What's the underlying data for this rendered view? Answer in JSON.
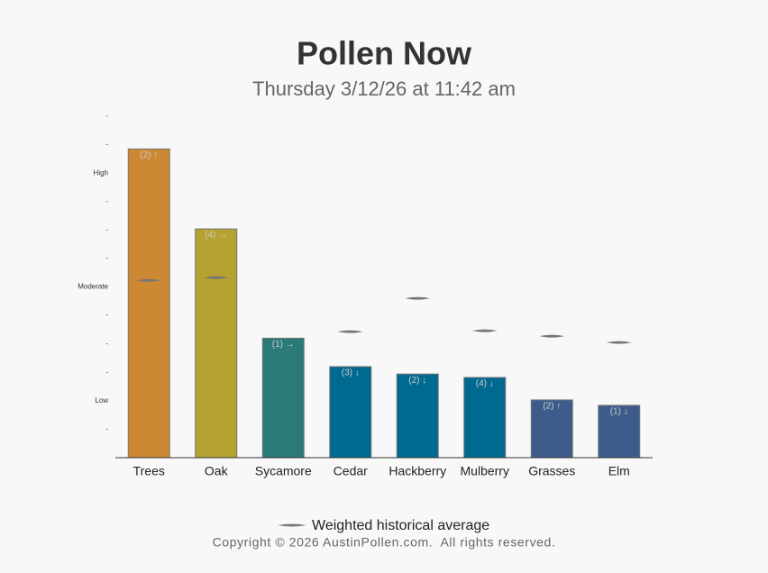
{
  "chart_data": {
    "type": "bar",
    "title": "Pollen Now",
    "subtitle": "Thursday 3/12/26 at 11:42 am",
    "categories": [
      "Trees",
      "Oak",
      "Sycamore",
      "Cedar",
      "Hackberry",
      "Mulberry",
      "Grasses",
      "Elm"
    ],
    "values": [
      10.85,
      8.04,
      4.2,
      3.2,
      2.94,
      2.82,
      2.03,
      1.84
    ],
    "annotations": [
      "(2) ↑",
      "(4) →",
      "(1) →",
      "(3) ↓",
      "(2) ↓",
      "(4) ↓",
      "(2) ↑",
      "(1) ↓"
    ],
    "colors": [
      "#cd8834",
      "#b5a230",
      "#2a7a78",
      "#006990",
      "#006990",
      "#006990",
      "#3d5c8c",
      "#3d5c8c"
    ],
    "historical": {
      "name": "Weighted historical average",
      "color": "#777777",
      "values": [
        6.23,
        6.33,
        null,
        4.43,
        5.6,
        4.46,
        4.27,
        4.05
      ]
    },
    "ylim": [
      0,
      12
    ],
    "yticks": [
      {
        "value": 1,
        "label": "-"
      },
      {
        "value": 2,
        "label": "Low"
      },
      {
        "value": 3,
        "label": "-"
      },
      {
        "value": 4,
        "label": "-"
      },
      {
        "value": 5,
        "label": "-"
      },
      {
        "value": 6,
        "label": "Moderate"
      },
      {
        "value": 7,
        "label": "-"
      },
      {
        "value": 8,
        "label": "-"
      },
      {
        "value": 9,
        "label": "-"
      },
      {
        "value": 10,
        "label": "High"
      },
      {
        "value": 11,
        "label": "-"
      },
      {
        "value": 12,
        "label": "-"
      }
    ],
    "footer": "Copyright © 2026 AustinPollen.com.  All rights reserved."
  }
}
